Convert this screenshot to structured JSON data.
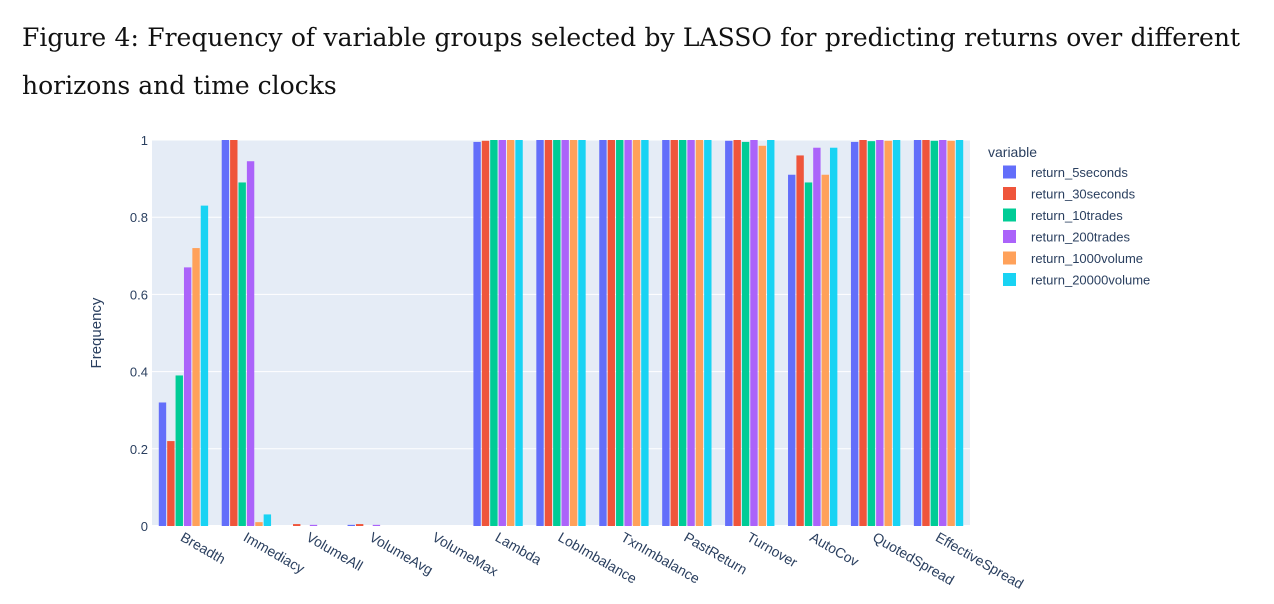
{
  "caption": "Figure 4:  Frequency of variable groups selected by LASSO for predicting returns over different horizons and time clocks",
  "chart_data": {
    "type": "bar",
    "ylabel": "Frequency",
    "xlabel": "",
    "ylim": [
      0,
      1
    ],
    "yticks": [
      0,
      0.2,
      0.4,
      0.6,
      0.8,
      1
    ],
    "ytick_labels": [
      "0",
      "0.2",
      "0.4",
      "0.6",
      "0.8",
      "1"
    ],
    "legend_title": "variable",
    "legend_position": "right",
    "grid": true,
    "categories": [
      "Breadth",
      "Immediacy",
      "VolumeAll",
      "VolumeAvg",
      "VolumeMax",
      "Lambda",
      "LobImbalance",
      "TxnImbalance",
      "PastReturn",
      "Turnover",
      "AutoCov",
      "QuotedSpread",
      "EffectiveSpread"
    ],
    "series": [
      {
        "name": "return_5seconds",
        "color": "#636efa",
        "values": [
          0.32,
          1.0,
          0.0,
          0.003,
          0.0,
          0.995,
          1.0,
          1.0,
          1.0,
          0.998,
          0.91,
          0.995,
          1.0
        ]
      },
      {
        "name": "return_30seconds",
        "color": "#EF553B",
        "values": [
          0.22,
          1.0,
          0.005,
          0.005,
          0.0,
          0.998,
          1.0,
          1.0,
          1.0,
          1.0,
          0.96,
          1.0,
          1.0
        ]
      },
      {
        "name": "return_10trades",
        "color": "#00cc96",
        "values": [
          0.39,
          0.89,
          0.0,
          0.0,
          0.0,
          1.0,
          1.0,
          1.0,
          1.0,
          0.995,
          0.89,
          0.997,
          0.998
        ]
      },
      {
        "name": "return_200trades",
        "color": "#ab63fa",
        "values": [
          0.67,
          0.945,
          0.003,
          0.003,
          0.0,
          1.0,
          1.0,
          1.0,
          1.0,
          1.0,
          0.98,
          1.0,
          1.0
        ]
      },
      {
        "name": "return_1000volume",
        "color": "#FFA15A",
        "values": [
          0.72,
          0.01,
          0.0,
          0.0,
          0.0,
          1.0,
          1.0,
          1.0,
          1.0,
          0.985,
          0.91,
          0.998,
          0.998
        ]
      },
      {
        "name": "return_20000volume",
        "color": "#19d3f3",
        "values": [
          0.83,
          0.03,
          0.0,
          0.0,
          0.0,
          1.0,
          1.0,
          1.0,
          1.0,
          1.0,
          0.98,
          1.0,
          1.0
        ]
      }
    ]
  }
}
